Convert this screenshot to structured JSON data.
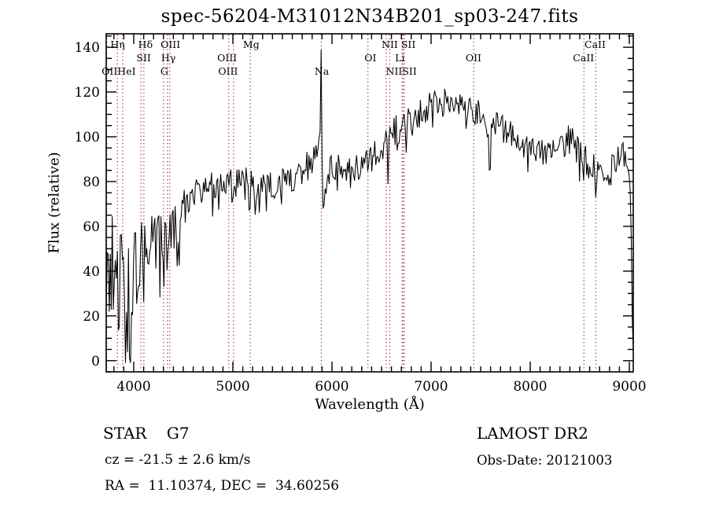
{
  "title": "spec-56204-M31012N34B201_sp03-247.fits",
  "axes": {
    "xlabel": "Wavelength (Å)",
    "ylabel": "Flux (relative)"
  },
  "annotations": {
    "class_line": "STAR    G7",
    "survey": "LAMOST DR2",
    "cz_line": "cz = -21.5 ± 2.6 km/s",
    "obs_date": "Obs-Date: 20121003",
    "radec_line": "RA =  11.10374, DEC =  34.60256"
  },
  "colors": {
    "spectrum": "#000000",
    "line_marker": "#993333",
    "frame": "#000000",
    "background": "#ffffff",
    "text": "#000000"
  },
  "chart_data": {
    "type": "line",
    "title": "spec-56204-M31012N34B201_sp03-247.fits",
    "xlabel": "Wavelength (Å)",
    "ylabel": "Flux (relative)",
    "xlim": [
      3722,
      9040
    ],
    "ylim": [
      -5,
      146
    ],
    "x_major_ticks": [
      4000,
      5000,
      6000,
      7000,
      8000,
      9000
    ],
    "y_major_ticks": [
      0,
      20,
      40,
      60,
      80,
      100,
      120,
      140
    ],
    "x_minor_step": 100,
    "y_minor_step": 5,
    "grid": false,
    "legend": "none",
    "series": [
      {
        "name": "spectrum",
        "x": [
          3722,
          3760,
          3800,
          3840,
          3880,
          3920,
          3960,
          4000,
          4040,
          4080,
          4120,
          4160,
          4200,
          4250,
          4300,
          4350,
          4400,
          4450,
          4500,
          4550,
          4600,
          4650,
          4700,
          4750,
          4800,
          4850,
          4900,
          4950,
          5000,
          5050,
          5100,
          5150,
          5200,
          5250,
          5300,
          5350,
          5400,
          5450,
          5500,
          5550,
          5600,
          5650,
          5700,
          5750,
          5800,
          5840,
          5870,
          5885,
          5895,
          5905,
          5915,
          5930,
          5960,
          6000,
          6050,
          6100,
          6150,
          6200,
          6250,
          6300,
          6350,
          6400,
          6450,
          6500,
          6550,
          6600,
          6650,
          6700,
          6750,
          6800,
          6850,
          6900,
          6950,
          7000,
          7050,
          7100,
          7150,
          7200,
          7250,
          7300,
          7350,
          7400,
          7450,
          7500,
          7550,
          7585,
          7600,
          7650,
          7700,
          7750,
          7800,
          7850,
          7900,
          7950,
          8000,
          8050,
          8100,
          8150,
          8200,
          8250,
          8300,
          8350,
          8400,
          8450,
          8500,
          8550,
          8600,
          8650,
          8700,
          8750,
          8800,
          8850,
          8900,
          8950,
          8990,
          9005,
          9020,
          9032,
          9040
        ],
        "y": [
          30,
          38,
          40,
          35,
          38,
          30,
          25,
          35,
          45,
          48,
          50,
          52,
          53,
          55,
          54,
          58,
          60,
          62,
          68,
          72,
          75,
          77,
          78,
          79,
          79,
          78,
          80,
          79,
          78,
          80,
          81,
          80,
          79,
          76,
          77,
          78,
          79,
          79,
          80,
          80,
          81,
          83,
          85,
          87,
          90,
          94,
          103,
          112,
          118,
          70,
          72,
          78,
          84,
          86,
          86,
          87,
          86,
          85,
          86,
          87,
          88,
          90,
          93,
          96,
          99,
          102,
          103,
          104,
          106,
          107,
          109,
          111,
          112,
          113,
          114,
          115,
          115,
          114,
          113,
          113,
          112,
          112,
          111,
          110,
          109,
          95,
          100,
          107,
          105,
          103,
          101,
          99,
          97,
          96,
          95,
          94,
          93,
          92,
          92,
          93,
          95,
          98,
          99,
          96,
          93,
          90,
          88,
          85,
          83,
          82,
          83,
          88,
          93,
          92,
          89,
          85,
          55,
          8,
          5
        ],
        "noise": [
          30,
          27,
          25,
          27,
          24,
          26,
          24,
          22,
          18,
          16,
          14,
          13,
          12,
          13,
          13,
          12,
          11,
          9,
          9,
          8,
          8,
          7,
          7,
          7,
          7,
          8,
          7,
          7,
          7,
          6,
          6,
          7,
          7,
          8,
          7,
          6,
          6,
          6,
          6,
          6,
          6,
          6,
          6,
          7,
          7,
          8,
          9,
          8,
          6,
          6,
          6,
          7,
          7,
          6,
          6,
          6,
          6,
          6,
          6,
          6,
          6,
          7,
          7,
          7,
          7,
          7,
          7,
          7,
          7,
          7,
          7,
          7,
          7,
          7,
          7,
          7,
          7,
          7,
          6,
          6,
          6,
          6,
          6,
          6,
          6,
          5,
          5,
          6,
          6,
          6,
          6,
          6,
          6,
          6,
          6,
          6,
          6,
          6,
          6,
          6,
          7,
          7,
          7,
          7,
          7,
          7,
          7,
          7,
          6,
          6,
          6,
          7,
          6,
          6,
          5,
          4,
          3,
          2,
          2
        ]
      }
    ],
    "absorption_features": [
      [
        3935,
        3,
        10
      ],
      [
        3970,
        1,
        9
      ],
      [
        4102,
        25,
        7
      ],
      [
        4227,
        32,
        6
      ],
      [
        4305,
        33,
        7
      ],
      [
        4340,
        30,
        7
      ],
      [
        4455,
        26,
        5
      ],
      [
        4861,
        60,
        6
      ],
      [
        5175,
        68,
        7
      ],
      [
        5270,
        62,
        7
      ],
      [
        6563,
        76,
        6
      ],
      [
        7593,
        82,
        11
      ],
      [
        8498,
        80,
        4
      ],
      [
        8542,
        74,
        5
      ],
      [
        8662,
        73,
        5
      ]
    ],
    "emission_features": [
      [
        5893,
        146,
        6
      ]
    ],
    "spectral_line_markers": [
      {
        "name": "OII",
        "wavelength": 3727
      },
      {
        "name": "Heta",
        "wavelength": 3835
      },
      {
        "name": "HeI",
        "wavelength": 3889
      },
      {
        "name": "SII",
        "wavelength": 4072
      },
      {
        "name": "Hdelta",
        "wavelength": 4102
      },
      {
        "name": "G",
        "wavelength": 4300
      },
      {
        "name": "Hgamma",
        "wavelength": 4340
      },
      {
        "name": "OIII",
        "wavelength": 4363
      },
      {
        "name": "OIII",
        "wavelength": 4959
      },
      {
        "name": "OIII",
        "wavelength": 5007
      },
      {
        "name": "Mg",
        "wavelength": 5175
      },
      {
        "name": "Na",
        "wavelength": 5893
      },
      {
        "name": "OI",
        "wavelength": 6363
      },
      {
        "name": "NII",
        "wavelength": 6548
      },
      {
        "name": "NII",
        "wavelength": 6583
      },
      {
        "name": "Li",
        "wavelength": 6708
      },
      {
        "name": "SII",
        "wavelength": 6716
      },
      {
        "name": "SII",
        "wavelength": 6731
      },
      {
        "name": "OII",
        "wavelength": 7430
      },
      {
        "name": "CaII",
        "wavelength": 8542
      },
      {
        "name": "CaII",
        "wavelength": 8662
      }
    ],
    "marker_labels": [
      {
        "text": "Hη",
        "row": 1,
        "anchor": 3838
      },
      {
        "text": "Hδ",
        "row": 1,
        "anchor": 4118
      },
      {
        "text": "OIII",
        "row": 1,
        "anchor": 4370
      },
      {
        "text": "Mg",
        "row": 1,
        "anchor": 5185
      },
      {
        "text": "NII SII",
        "row": 1,
        "anchor": 6672
      },
      {
        "text": "CaII",
        "row": 1,
        "anchor": 8655
      },
      {
        "text": "SII",
        "row": 2,
        "anchor": 4100
      },
      {
        "text": "Hγ",
        "row": 2,
        "anchor": 4350
      },
      {
        "text": "OIII",
        "row": 2,
        "anchor": 4942
      },
      {
        "text": "OI",
        "row": 2,
        "anchor": 6388
      },
      {
        "text": "Li",
        "row": 2,
        "anchor": 6685
      },
      {
        "text": "OII",
        "row": 2,
        "anchor": 7428
      },
      {
        "text": "CaII",
        "row": 2,
        "anchor": 8538
      },
      {
        "text": "OIIHeI",
        "row": 3,
        "anchor": 3848
      },
      {
        "text": "G",
        "row": 3,
        "anchor": 4308
      },
      {
        "text": "OIII",
        "row": 3,
        "anchor": 4952
      },
      {
        "text": "Na",
        "row": 3,
        "anchor": 5897
      },
      {
        "text": "NIISII",
        "row": 3,
        "anchor": 6700
      }
    ]
  }
}
